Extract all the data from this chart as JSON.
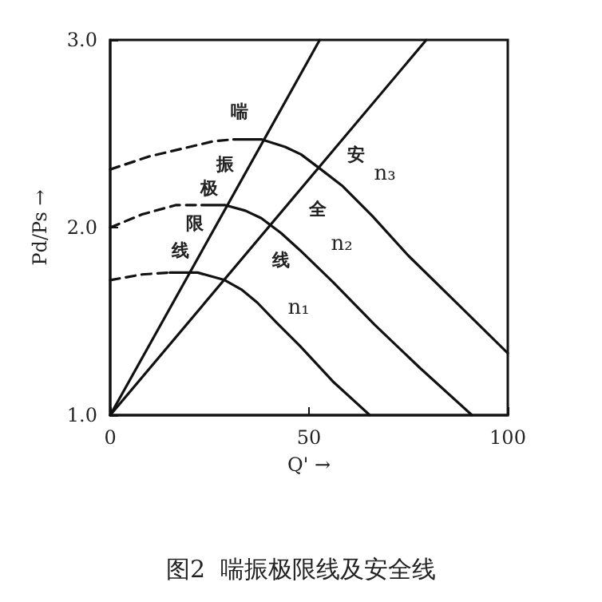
{
  "chart_data": {
    "type": "line",
    "title": "图2  喘振极限线及安全线",
    "xlabel": "Q' →",
    "ylabel": "Pd/Ps →",
    "xlim": [
      0,
      100
    ],
    "ylim": [
      1.0,
      3.0
    ],
    "xticks": [
      0,
      50,
      100
    ],
    "yticks": [
      {
        "value": 1,
        "label": "1.0"
      },
      {
        "value": 2,
        "label": "2.0"
      },
      {
        "value": 3,
        "label": "3.0"
      }
    ],
    "grid": false,
    "marker": "none",
    "series": [
      {
        "color": "#111111",
        "line_style": "dashed",
        "x": [
          0,
          10,
          20,
          26,
          31
        ],
        "values": [
          2.31,
          2.38,
          2.43,
          2.46,
          2.47
        ]
      },
      {
        "color": "#111111",
        "line_style": "solid",
        "x": [
          31,
          38,
          44,
          48,
          53,
          58.5,
          66,
          75,
          88,
          100
        ],
        "values": [
          2.47,
          2.47,
          2.43,
          2.39,
          2.31,
          2.22,
          2.06,
          1.85,
          1.58,
          1.33
        ]
      },
      {
        "color": "#111111",
        "line_style": "dashed",
        "x": [
          0,
          8,
          16.6,
          23
        ],
        "values": [
          2.0,
          2.07,
          2.12,
          2.12
        ]
      },
      {
        "color": "#111111",
        "line_style": "solid",
        "x": [
          23,
          28.8,
          34,
          38,
          43,
          47.7,
          56,
          66.6,
          78,
          91
        ],
        "values": [
          2.12,
          2.12,
          2.09,
          2.05,
          1.97,
          1.88,
          1.71,
          1.48,
          1.25,
          1.0
        ]
      },
      {
        "color": "#111111",
        "line_style": "dashed",
        "x": [
          0,
          8,
          15
        ],
        "values": [
          1.72,
          1.75,
          1.76
        ]
      },
      {
        "color": "#111111",
        "line_style": "solid",
        "x": [
          15,
          22,
          28.8,
          33,
          37,
          42,
          47.7,
          56,
          65.3
        ],
        "values": [
          1.76,
          1.76,
          1.72,
          1.67,
          1.6,
          1.49,
          1.37,
          1.18,
          1.0
        ]
      },
      {
        "color": "#111111",
        "line_style": "solid",
        "x": [
          0,
          52.7
        ],
        "values": [
          1.0,
          3.0
        ]
      },
      {
        "color": "#111111",
        "line_style": "solid",
        "x": [
          0,
          79.5
        ],
        "values": [
          1.0,
          3.0
        ]
      }
    ],
    "annotations": [
      "n₃",
      "n₂",
      "n₁",
      "喘振极限线",
      "安全线"
    ]
  }
}
